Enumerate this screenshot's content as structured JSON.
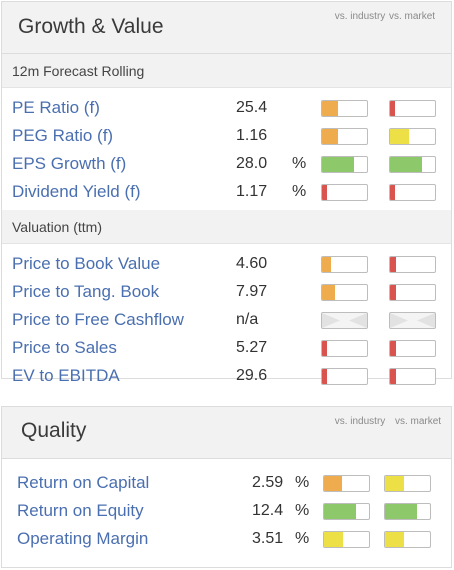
{
  "colors": {
    "red": "#d9534f",
    "orange": "#efac4e",
    "yellow": "#ece046",
    "green": "#8dc86a",
    "link": "#4a6fb0"
  },
  "growth_value": {
    "title": "Growth & Value",
    "col_industry": "vs. industry",
    "col_market": "vs. market",
    "sections": [
      {
        "heading": "12m Forecast Rolling",
        "rows": [
          {
            "label": "PE Ratio (f)",
            "value": "25.4",
            "unit": "",
            "industry": {
              "level": 0.35,
              "color": "#efac4e"
            },
            "market": {
              "level": 0.12,
              "color": "#d9534f"
            }
          },
          {
            "label": "PEG Ratio (f)",
            "value": "1.16",
            "unit": "",
            "industry": {
              "level": 0.35,
              "color": "#efac4e"
            },
            "market": {
              "level": 0.42,
              "color": "#ece046"
            }
          },
          {
            "label": "EPS Growth (f)",
            "value": "28.0",
            "unit": "%",
            "industry": {
              "level": 0.72,
              "color": "#8dc86a"
            },
            "market": {
              "level": 0.7,
              "color": "#8dc86a"
            }
          },
          {
            "label": "Dividend Yield (f)",
            "value": "1.17",
            "unit": "%",
            "industry": {
              "level": 0.1,
              "color": "#d9534f"
            },
            "market": {
              "level": 0.1,
              "color": "#d9534f"
            }
          }
        ]
      },
      {
        "heading": "Valuation (ttm)",
        "rows": [
          {
            "label": "Price to Book Value",
            "value": "4.60",
            "unit": "",
            "industry": {
              "level": 0.2,
              "color": "#efac4e"
            },
            "market": {
              "level": 0.14,
              "color": "#d9534f"
            }
          },
          {
            "label": "Price to Tang. Book",
            "value": "7.97",
            "unit": "",
            "industry": {
              "level": 0.28,
              "color": "#efac4e"
            },
            "market": {
              "level": 0.14,
              "color": "#d9534f"
            }
          },
          {
            "label": "Price to Free Cashflow",
            "value": "n/a",
            "unit": "",
            "industry": null,
            "market": null
          },
          {
            "label": "Price to Sales",
            "value": "5.27",
            "unit": "",
            "industry": {
              "level": 0.1,
              "color": "#d9534f"
            },
            "market": {
              "level": 0.14,
              "color": "#d9534f"
            }
          },
          {
            "label": "EV to EBITDA",
            "value": "29.6",
            "unit": "",
            "industry": {
              "level": 0.1,
              "color": "#d9534f"
            },
            "market": {
              "level": 0.14,
              "color": "#d9534f"
            }
          }
        ]
      }
    ]
  },
  "quality": {
    "title": "Quality",
    "col_industry": "vs. industry",
    "col_market": "vs. market",
    "rows": [
      {
        "label": "Return on Capital",
        "value": "2.59",
        "unit": "%",
        "industry": {
          "level": 0.4,
          "color": "#efac4e"
        },
        "market": {
          "level": 0.42,
          "color": "#ece046"
        }
      },
      {
        "label": "Return on Equity",
        "value": "12.4",
        "unit": "%",
        "industry": {
          "level": 0.72,
          "color": "#8dc86a"
        },
        "market": {
          "level": 0.72,
          "color": "#8dc86a"
        }
      },
      {
        "label": "Operating Margin",
        "value": "3.51",
        "unit": "%",
        "industry": {
          "level": 0.42,
          "color": "#ece046"
        },
        "market": {
          "level": 0.42,
          "color": "#ece046"
        }
      }
    ]
  }
}
